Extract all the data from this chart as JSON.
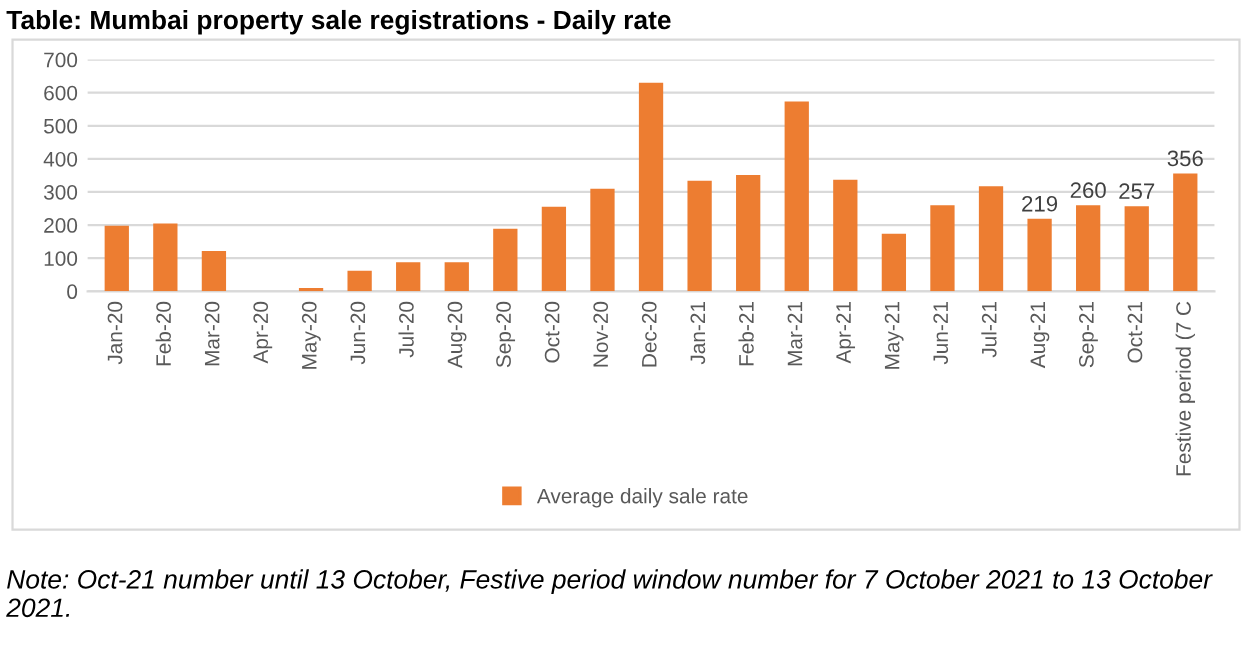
{
  "chart_data": {
    "type": "bar",
    "title": "Table: Mumbai property sale registrations - Daily rate",
    "categories": [
      "Jan-20",
      "Feb-20",
      "Mar-20",
      "Apr-20",
      "May-20",
      "Jun-20",
      "Jul-20",
      "Aug-20",
      "Sep-20",
      "Oct-20",
      "Nov-20",
      "Dec-20",
      "Jan-21",
      "Feb-21",
      "Mar-21",
      "Apr-21",
      "May-21",
      "Jun-21",
      "Jul-21",
      "Aug-21",
      "Sep-21",
      "Oct-21",
      "Festive period (7 C"
    ],
    "series": [
      {
        "name": "Average daily sale rate",
        "color": "#ed7d31",
        "values": [
          198,
          205,
          122,
          0,
          10,
          62,
          88,
          88,
          189,
          255,
          310,
          630,
          334,
          351,
          573,
          337,
          174,
          260,
          317,
          219,
          260,
          257,
          356
        ],
        "value_labels": [
          null,
          null,
          null,
          null,
          null,
          null,
          null,
          null,
          null,
          null,
          null,
          null,
          null,
          null,
          null,
          null,
          null,
          null,
          null,
          "219",
          "260",
          "257",
          "356"
        ]
      }
    ],
    "ylim": [
      0,
      700
    ],
    "yticks": [
      0,
      100,
      200,
      300,
      400,
      500,
      600,
      700
    ],
    "grid": "y",
    "legend": "bottom",
    "annotations": [
      "Note: Oct-21 number until 13 October, Festive period window number for 7 October 2021 to 13 October 2021."
    ]
  }
}
